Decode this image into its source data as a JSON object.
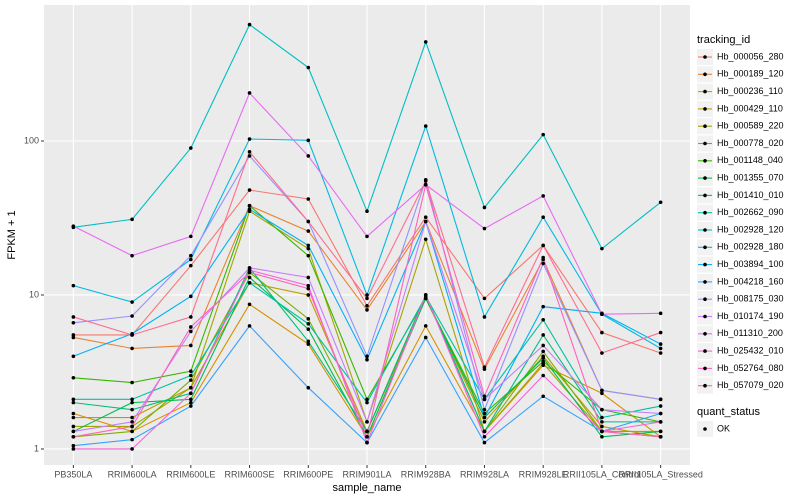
{
  "chart_data": {
    "type": "line",
    "log_y": true,
    "grid": true,
    "xlabel": "sample_name",
    "ylabel": "FPKM + 1",
    "legend_title": "tracking_id",
    "shape_legend": {
      "title": "quant_status",
      "entries": [
        "OK"
      ]
    },
    "point_color": "#000000",
    "panel_color": "#ebebeb",
    "categories": [
      "PB350LA",
      "RRIM600LA",
      "RRIM600LE",
      "RRIM600SE",
      "RRIM600PE",
      "RRIM901LA",
      "RRIM928BA",
      "RRIM928LA",
      "RRIM928LE",
      "RRII105LA_Control",
      "RRII105LA_Stressed"
    ],
    "ylim": [
      0.787,
      764
    ],
    "yticks": [
      1,
      10,
      100
    ],
    "series": [
      {
        "name": "Hb_000056_280",
        "color": "#F8766D",
        "values": [
          5.5,
          5.5,
          15.5,
          48,
          42,
          8.5,
          32,
          9.5,
          21,
          5.7,
          4.2
        ]
      },
      {
        "name": "Hb_000189_120",
        "color": "#EA8331",
        "values": [
          5.3,
          4.5,
          4.7,
          38,
          26,
          8,
          30,
          3.3,
          17,
          2.4,
          2.1
        ]
      },
      {
        "name": "Hb_000236_110",
        "color": "#D89000",
        "values": [
          1.7,
          1.3,
          2.0,
          8.7,
          4.8,
          1.2,
          6.3,
          1.3,
          3.5,
          2.3,
          1.2
        ]
      },
      {
        "name": "Hb_000429_110",
        "color": "#C09B00",
        "values": [
          1.6,
          1.6,
          2.5,
          12,
          10,
          1.3,
          9.5,
          1.5,
          4,
          1.4,
          1.2
        ]
      },
      {
        "name": "Hb_000589_220",
        "color": "#A3A500",
        "values": [
          1.4,
          1.4,
          2.5,
          35,
          20,
          1.5,
          23,
          1.3,
          3.6,
          1.3,
          1.3
        ]
      },
      {
        "name": "Hb_000778_020",
        "color": "#7CAE00",
        "values": [
          1.2,
          1.3,
          2.8,
          14,
          7,
          1.3,
          10,
          1.3,
          4.3,
          1.3,
          1.2
        ]
      },
      {
        "name": "Hb_001148_040",
        "color": "#39B600",
        "values": [
          2.9,
          2.7,
          3.2,
          38,
          18,
          2.1,
          9.5,
          1.7,
          3.7,
          1.8,
          1.5
        ]
      },
      {
        "name": "Hb_001355_070",
        "color": "#00BB4E",
        "values": [
          1.3,
          2.0,
          2.1,
          13,
          6,
          1.2,
          9.5,
          1.6,
          3.9,
          1.2,
          1.3
        ]
      },
      {
        "name": "Hb_001410_010",
        "color": "#00BF7D",
        "values": [
          2.0,
          1.8,
          2.3,
          15,
          5,
          1.3,
          10,
          1.3,
          5.5,
          1.5,
          1.5
        ]
      },
      {
        "name": "Hb_002662_090",
        "color": "#00C1A3",
        "values": [
          2.1,
          2.1,
          3.0,
          12,
          6.5,
          2.0,
          9.8,
          2.1,
          6.9,
          1.6,
          1.9
        ]
      },
      {
        "name": "Hb_002928_120",
        "color": "#00BFC4",
        "values": [
          27.5,
          31,
          90,
          570,
          300,
          35,
          440,
          37,
          110,
          20,
          40
        ]
      },
      {
        "name": "Hb_002928_180",
        "color": "#00BAE0",
        "values": [
          11.5,
          9,
          17,
          103,
          101,
          10,
          125,
          7.2,
          32,
          7.5,
          4.5
        ]
      },
      {
        "name": "Hb_003894_100",
        "color": "#00B0F6",
        "values": [
          4,
          5.6,
          9.8,
          36,
          21,
          3.8,
          30,
          1.6,
          8.4,
          7.6,
          4.8
        ]
      },
      {
        "name": "Hb_004218_160",
        "color": "#35A2FF",
        "values": [
          1.05,
          1.15,
          1.9,
          6.3,
          2.5,
          1.1,
          5.3,
          1.1,
          2.2,
          1.3,
          1.7
        ]
      },
      {
        "name": "Hb_008175_030",
        "color": "#9590FF",
        "values": [
          6.6,
          7.3,
          18,
          80,
          30,
          4,
          56,
          1.8,
          16,
          2.4,
          2.1
        ]
      },
      {
        "name": "Hb_010174_190",
        "color": "#C77CFF",
        "values": [
          1.3,
          1.5,
          5.8,
          15,
          13,
          1.5,
          30,
          2.1,
          4.7,
          1.8,
          1.7
        ]
      },
      {
        "name": "Hb_011310_200",
        "color": "#E76BF3",
        "values": [
          28,
          18,
          24,
          205,
          80,
          24,
          52,
          27,
          44,
          7.5,
          7.6
        ]
      },
      {
        "name": "Hb_025432_010",
        "color": "#FA62DB",
        "values": [
          1.0,
          1.0,
          2.3,
          14.5,
          11.5,
          1.1,
          10,
          1.2,
          3.0,
          1.3,
          1.5
        ]
      },
      {
        "name": "Hb_052764_080",
        "color": "#FF62BC",
        "values": [
          1.2,
          1.4,
          6.2,
          14,
          11,
          1.2,
          52,
          2.2,
          17.5,
          1.3,
          1.2
        ]
      },
      {
        "name": "Hb_057079_020",
        "color": "#FF6C91",
        "values": [
          7.2,
          5.5,
          7.2,
          85,
          30,
          9.5,
          55,
          3.4,
          21,
          4.2,
          5.7
        ]
      }
    ]
  }
}
